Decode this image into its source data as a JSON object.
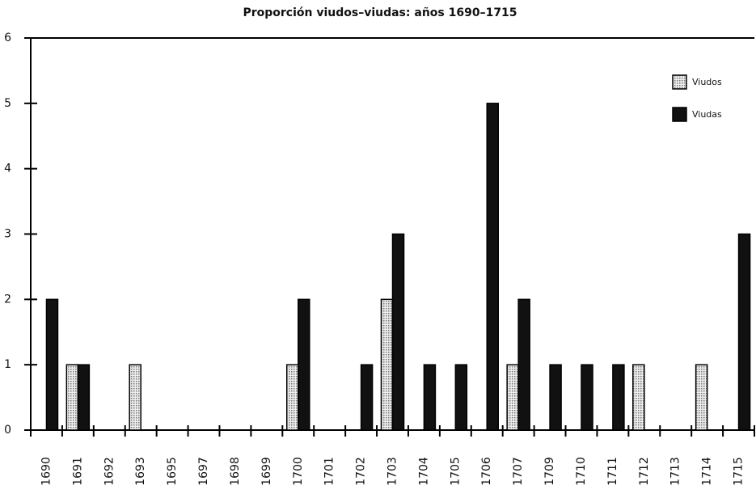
{
  "chart_data": {
    "type": "bar",
    "title": "Proporción viudos–viudas: años 1690–1715",
    "categories": [
      "1690",
      "1691",
      "1692",
      "1693",
      "1695",
      "1697",
      "1698",
      "1699",
      "1700",
      "1701",
      "1702",
      "1703",
      "1704",
      "1705",
      "1706",
      "1707",
      "1709",
      "1710",
      "1711",
      "1712",
      "1713",
      "1714",
      "1715"
    ],
    "series": [
      {
        "name": "Viudos",
        "color": "#c8c8c8",
        "values": [
          0,
          1,
          0,
          1,
          0,
          0,
          0,
          0,
          1,
          0,
          0,
          2,
          0,
          0,
          0,
          1,
          0,
          0,
          0,
          1,
          0,
          1,
          0
        ]
      },
      {
        "name": "Viudas",
        "color": "#111111",
        "values": [
          2,
          1,
          0,
          0,
          0,
          0,
          0,
          0,
          2,
          0,
          1,
          3,
          1,
          1,
          5,
          2,
          1,
          1,
          1,
          0,
          0,
          0,
          3
        ]
      }
    ],
    "ylim": [
      0,
      6
    ],
    "yticks": [
      0,
      1,
      2,
      3,
      4,
      5,
      6
    ],
    "legend": "upper right"
  }
}
